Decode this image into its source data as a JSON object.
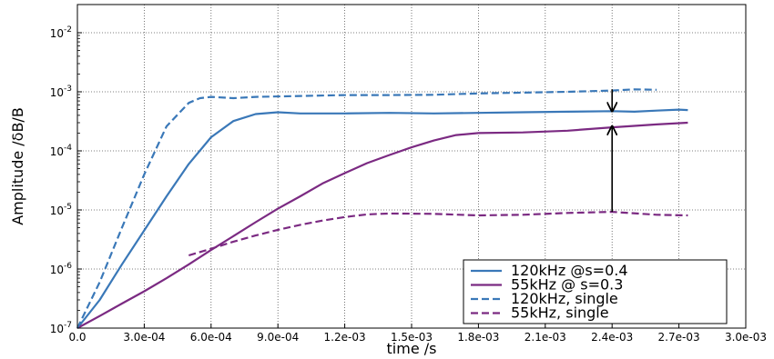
{
  "chart_data": {
    "type": "line",
    "title": "",
    "xlabel": "time /s",
    "ylabel": "Amplitude /δB/B",
    "xlim": [
      0.0,
      0.003
    ],
    "ylim": [
      1e-07,
      0.03
    ],
    "yscale": "log",
    "grid": true,
    "legend_position": "bottom-right",
    "x_tick_labels": [
      "0.0",
      "3.0e-04",
      "6.0e-04",
      "9.0e-04",
      "1.2e-03",
      "1.5e-03",
      "1.8e-03",
      "2.1e-03",
      "2.4e-03",
      "2.7e-03",
      "3.0e-03"
    ],
    "y_tick_labels": [
      {
        "base": "10",
        "exp": "-7"
      },
      {
        "base": "10",
        "exp": "-6"
      },
      {
        "base": "10",
        "exp": "-5"
      },
      {
        "base": "10",
        "exp": "-4"
      },
      {
        "base": "10",
        "exp": "-3"
      },
      {
        "base": "10",
        "exp": "-2"
      }
    ],
    "series": [
      {
        "name": "120kHz @s=0.4",
        "color": "#3a78b8",
        "dash": "solid",
        "x": [
          0.0,
          0.0001,
          0.0002,
          0.0003,
          0.0004,
          0.0005,
          0.0006,
          0.0007,
          0.0008,
          0.0009,
          0.001,
          0.0012,
          0.0014,
          0.0016,
          0.0018,
          0.002,
          0.0022,
          0.0024,
          0.0025,
          0.0026,
          0.0027,
          0.00274
        ],
        "y": [
          1e-07,
          3e-07,
          1.2e-06,
          4.5e-06,
          1.7e-05,
          6e-05,
          0.00017,
          0.00032,
          0.00042,
          0.00045,
          0.00043,
          0.00043,
          0.00044,
          0.00043,
          0.00044,
          0.00045,
          0.00046,
          0.00047,
          0.00046,
          0.00048,
          0.0005,
          0.00049
        ]
      },
      {
        "name": "55kHz @ s=0.3",
        "color": "#7b2a82",
        "dash": "solid",
        "x": [
          0.0,
          0.0001,
          0.0002,
          0.0003,
          0.0004,
          0.0005,
          0.0006,
          0.0007,
          0.0008,
          0.0009,
          0.001,
          0.0011,
          0.0012,
          0.0013,
          0.0014,
          0.0015,
          0.0016,
          0.0017,
          0.0018,
          0.002,
          0.0022,
          0.0024,
          0.0026,
          0.00274
        ],
        "y": [
          1e-07,
          1.6e-07,
          2.6e-07,
          4.2e-07,
          7e-07,
          1.2e-06,
          2.1e-06,
          3.6e-06,
          6.2e-06,
          1.05e-05,
          1.7e-05,
          2.8e-05,
          4.2e-05,
          6.2e-05,
          8.5e-05,
          0.000115,
          0.00015,
          0.000185,
          0.0002,
          0.000205,
          0.00022,
          0.00025,
          0.00028,
          0.0003
        ]
      },
      {
        "name": "120kHz, single",
        "color": "#3a78b8",
        "dash": "dashed",
        "x": [
          0.0,
          0.0001,
          0.0002,
          0.0003,
          0.0004,
          0.0005,
          0.00055,
          0.0006,
          0.0007,
          0.0008,
          0.001,
          0.0012,
          0.0014,
          0.0016,
          0.0018,
          0.002,
          0.0022,
          0.0024,
          0.0025,
          0.0026
        ],
        "y": [
          1e-07,
          6e-07,
          5e-06,
          4e-05,
          0.00026,
          0.00065,
          0.00078,
          0.00082,
          0.00078,
          0.00082,
          0.00085,
          0.00088,
          0.00088,
          0.00089,
          0.00094,
          0.00097,
          0.001,
          0.00105,
          0.0011,
          0.00108
        ]
      },
      {
        "name": "55kHz, single",
        "color": "#7b2a82",
        "dash": "dashed",
        "x": [
          0.0005,
          0.0006,
          0.0007,
          0.0008,
          0.0009,
          0.001,
          0.0011,
          0.0012,
          0.0013,
          0.0014,
          0.0016,
          0.0018,
          0.002,
          0.0022,
          0.0024,
          0.0026,
          0.00274
        ],
        "y": [
          1.7e-06,
          2.2e-06,
          2.9e-06,
          3.7e-06,
          4.6e-06,
          5.6e-06,
          6.6e-06,
          7.6e-06,
          8.4e-06,
          8.7e-06,
          8.6e-06,
          8.1e-06,
          8.3e-06,
          8.9e-06,
          9.3e-06,
          8.3e-06,
          8.1e-06
        ]
      }
    ],
    "annotations": [
      {
        "type": "arrow",
        "x": 0.0024,
        "y_from": 0.0011,
        "y_to": 0.00047
      },
      {
        "type": "arrow",
        "x": 0.0024,
        "y_from": 9.3e-06,
        "y_to": 0.00026
      }
    ]
  }
}
